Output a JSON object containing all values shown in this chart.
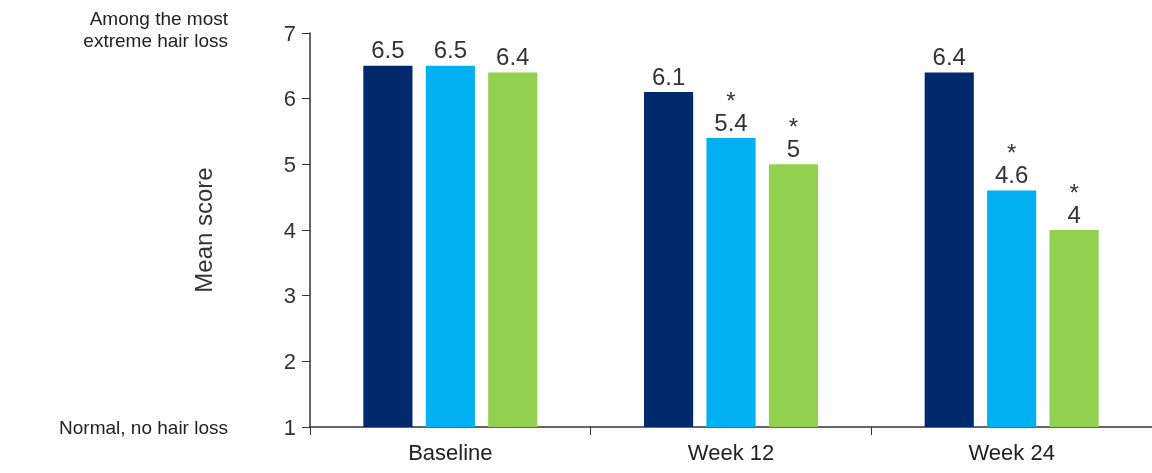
{
  "chart_data": {
    "type": "bar",
    "ylabel": "Mean score",
    "categories": [
      "Baseline",
      "Week 12",
      "Week 24"
    ],
    "series": [
      {
        "color": "#002a6c",
        "values": [
          6.5,
          6.1,
          6.4
        ],
        "value_labels": [
          "6.5",
          "6.1",
          "6.4"
        ]
      },
      {
        "color": "#00b0f0",
        "values": [
          6.5,
          5.4,
          4.6
        ],
        "value_labels": [
          "6.5",
          "*\n5.4",
          "*\n4.6"
        ]
      },
      {
        "color": "#92d050",
        "values": [
          6.4,
          5,
          4
        ],
        "value_labels": [
          "6.4",
          "*\n5",
          "*\n4"
        ]
      }
    ],
    "ylim": [
      1,
      7
    ],
    "yticks": [
      1,
      2,
      3,
      4,
      5,
      6,
      7
    ],
    "grid": false,
    "annotations": [
      "Among the most\nextreme hair loss",
      "Normal, no hair loss"
    ]
  }
}
